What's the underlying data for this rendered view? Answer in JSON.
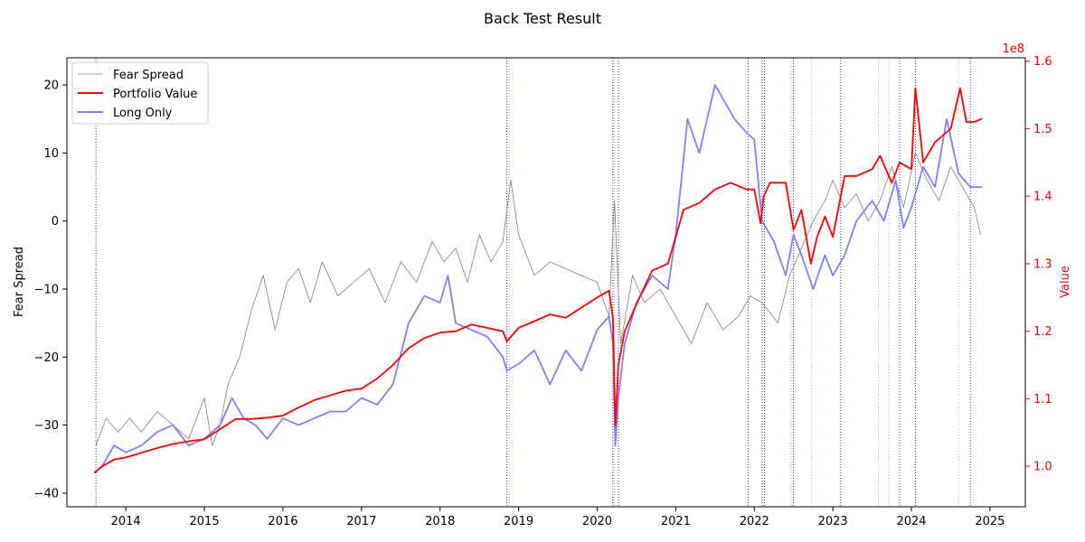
{
  "chart_data": {
    "type": "line",
    "title": "Back Test Result",
    "xlabel": "",
    "ylabel_left": "Fear Spread",
    "ylabel_right": "Value",
    "right_axis_offset_label": "1e8",
    "xlim": [
      2013.25,
      2025.45
    ],
    "ylim_left": [
      -42,
      24
    ],
    "ylim_right": [
      0.94,
      1.605
    ],
    "x_ticks": [
      2014,
      2015,
      2016,
      2017,
      2018,
      2019,
      2020,
      2021,
      2022,
      2023,
      2024,
      2025
    ],
    "y_ticks_left": [
      -40,
      -30,
      -20,
      -10,
      0,
      10,
      20
    ],
    "y_ticks_right": [
      1.0,
      1.1,
      1.2,
      1.3,
      1.4,
      1.5,
      1.6
    ],
    "grid": false,
    "legend_position": "top-left",
    "colors": {
      "fear_spread": "#808080",
      "portfolio": "#ff0000",
      "long_only": "#7f7fff",
      "right_axis": "#ff0000",
      "buy_signal": "#0000aa",
      "sell_signal": "#ff8080"
    },
    "series": [
      {
        "name": "Fear Spread",
        "axis": "left",
        "x": [
          2013.62,
          2013.75,
          2013.9,
          2014.05,
          2014.2,
          2014.4,
          2014.6,
          2014.8,
          2015.0,
          2015.1,
          2015.2,
          2015.3,
          2015.45,
          2015.6,
          2015.75,
          2015.9,
          2016.05,
          2016.2,
          2016.35,
          2016.5,
          2016.7,
          2016.9,
          2017.1,
          2017.3,
          2017.5,
          2017.7,
          2017.9,
          2018.05,
          2018.2,
          2018.35,
          2018.5,
          2018.65,
          2018.8,
          2018.9,
          2019.0,
          2019.2,
          2019.4,
          2019.6,
          2019.8,
          2020.0,
          2020.15,
          2020.22,
          2020.3,
          2020.45,
          2020.6,
          2020.8,
          2021.0,
          2021.2,
          2021.4,
          2021.6,
          2021.8,
          2021.95,
          2022.1,
          2022.3,
          2022.45,
          2022.6,
          2022.75,
          2022.9,
          2023.0,
          2023.15,
          2023.3,
          2023.45,
          2023.6,
          2023.75,
          2023.9,
          2024.05,
          2024.2,
          2024.35,
          2024.5,
          2024.65,
          2024.8,
          2024.88
        ],
        "values": [
          -33,
          -29,
          -31,
          -29,
          -31,
          -28,
          -30,
          -32,
          -26,
          -33,
          -30,
          -24,
          -20,
          -13,
          -8,
          -16,
          -9,
          -7,
          -12,
          -6,
          -11,
          -9,
          -7,
          -12,
          -6,
          -9,
          -3,
          -6,
          -4,
          -9,
          -2,
          -6,
          -3,
          6,
          -2,
          -8,
          -6,
          -7,
          -8,
          -9,
          -14,
          3,
          -18,
          -8,
          -12,
          -10,
          -14,
          -18,
          -12,
          -16,
          -14,
          -11,
          -12,
          -15,
          -8,
          -4,
          0,
          3,
          6,
          2,
          4,
          0,
          3,
          8,
          2,
          10,
          6,
          3,
          8,
          5,
          2,
          -2
        ]
      },
      {
        "name": "Portfolio Value",
        "axis": "right",
        "x": [
          2013.6,
          2013.7,
          2013.85,
          2014.0,
          2014.2,
          2014.4,
          2014.6,
          2014.8,
          2015.0,
          2015.2,
          2015.4,
          2015.6,
          2015.8,
          2016.0,
          2016.2,
          2016.4,
          2016.6,
          2016.8,
          2017.0,
          2017.2,
          2017.4,
          2017.6,
          2017.8,
          2018.0,
          2018.2,
          2018.4,
          2018.6,
          2018.8,
          2018.85,
          2019.0,
          2019.2,
          2019.4,
          2019.6,
          2019.8,
          2020.0,
          2020.15,
          2020.2,
          2020.23,
          2020.27,
          2020.35,
          2020.5,
          2020.7,
          2020.9,
          2021.0,
          2021.1,
          2021.3,
          2021.5,
          2021.7,
          2021.9,
          2022.0,
          2022.08,
          2022.12,
          2022.2,
          2022.4,
          2022.5,
          2022.6,
          2022.72,
          2022.8,
          2022.9,
          2023.0,
          2023.15,
          2023.3,
          2023.5,
          2023.6,
          2023.75,
          2023.85,
          2024.0,
          2024.05,
          2024.15,
          2024.3,
          2024.5,
          2024.62,
          2024.7,
          2024.8,
          2024.9
        ],
        "values": [
          0.99,
          1.0,
          1.01,
          1.013,
          1.02,
          1.027,
          1.033,
          1.037,
          1.04,
          1.055,
          1.07,
          1.07,
          1.072,
          1.075,
          1.087,
          1.098,
          1.105,
          1.112,
          1.115,
          1.13,
          1.15,
          1.175,
          1.19,
          1.198,
          1.2,
          1.21,
          1.205,
          1.2,
          1.185,
          1.205,
          1.215,
          1.225,
          1.22,
          1.235,
          1.25,
          1.26,
          1.22,
          1.06,
          1.15,
          1.2,
          1.24,
          1.29,
          1.3,
          1.34,
          1.38,
          1.39,
          1.41,
          1.42,
          1.41,
          1.41,
          1.36,
          1.4,
          1.42,
          1.42,
          1.35,
          1.38,
          1.3,
          1.34,
          1.37,
          1.34,
          1.43,
          1.43,
          1.44,
          1.46,
          1.42,
          1.45,
          1.44,
          1.56,
          1.45,
          1.48,
          1.5,
          1.56,
          1.51,
          1.51,
          1.515
        ]
      },
      {
        "name": "Long Only",
        "axis": "left",
        "x": [
          2013.6,
          2013.7,
          2013.85,
          2014.0,
          2014.2,
          2014.4,
          2014.6,
          2014.8,
          2015.0,
          2015.2,
          2015.35,
          2015.5,
          2015.65,
          2015.8,
          2016.0,
          2016.2,
          2016.4,
          2016.6,
          2016.8,
          2017.0,
          2017.2,
          2017.4,
          2017.6,
          2017.8,
          2018.0,
          2018.1,
          2018.2,
          2018.4,
          2018.6,
          2018.8,
          2018.85,
          2019.0,
          2019.2,
          2019.4,
          2019.6,
          2019.8,
          2020.0,
          2020.15,
          2020.2,
          2020.23,
          2020.27,
          2020.35,
          2020.5,
          2020.7,
          2020.9,
          2021.0,
          2021.15,
          2021.3,
          2021.5,
          2021.6,
          2021.75,
          2021.9,
          2022.0,
          2022.1,
          2022.25,
          2022.4,
          2022.5,
          2022.6,
          2022.75,
          2022.9,
          2023.0,
          2023.15,
          2023.3,
          2023.5,
          2023.65,
          2023.8,
          2023.9,
          2024.0,
          2024.15,
          2024.3,
          2024.45,
          2024.6,
          2024.75,
          2024.9
        ],
        "values": [
          -37,
          -36,
          -33,
          -34,
          -33,
          -31,
          -30,
          -33,
          -32,
          -30,
          -26,
          -29,
          -30,
          -32,
          -29,
          -30,
          -29,
          -28,
          -28,
          -26,
          -27,
          -24,
          -15,
          -11,
          -12,
          -8,
          -15,
          -16,
          -17,
          -20,
          -22,
          -21,
          -19,
          -24,
          -19,
          -22,
          -16,
          -14,
          -18,
          -33,
          -26,
          -18,
          -12,
          -8,
          -10,
          -2,
          15,
          10,
          20,
          18,
          15,
          13,
          12,
          0,
          -3,
          -8,
          -2,
          -5,
          -10,
          -5,
          -8,
          -5,
          0,
          3,
          0,
          6,
          -1,
          2,
          8,
          5,
          15,
          7,
          5,
          5
        ]
      }
    ],
    "signal_lines": {
      "buy": [
        2013.62,
        2018.85,
        2020.2,
        2020.27,
        2021.92,
        2022.1,
        2022.13,
        2022.5,
        2023.1,
        2023.85,
        2024.05,
        2024.75
      ],
      "sell": [
        2018.88,
        2020.22,
        2022.47,
        2022.73,
        2023.58,
        2023.72,
        2024.6
      ]
    }
  }
}
